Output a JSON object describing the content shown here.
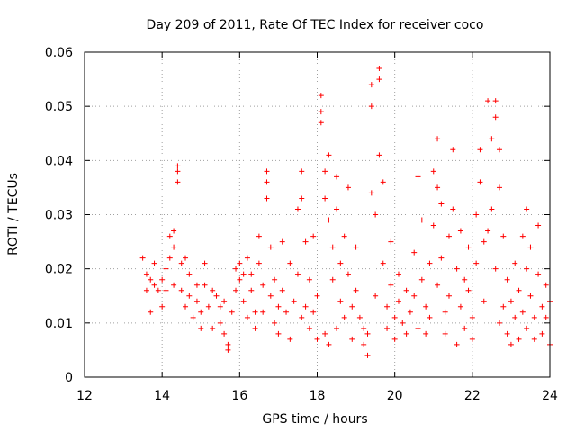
{
  "chart_data": {
    "type": "scatter",
    "title": "Day 209 of 2011, Rate Of TEC Index for receiver coco",
    "xlabel": "GPS time / hours",
    "ylabel": "ROTI / TECUs",
    "xlim": [
      12,
      24
    ],
    "ylim": [
      0,
      0.06
    ],
    "xticks": [
      "12",
      "14",
      "16",
      "18",
      "20",
      "22",
      "24"
    ],
    "yticks": [
      "0",
      "0.01",
      "0.02",
      "0.03",
      "0.04",
      "0.05",
      "0.06"
    ],
    "grid": true,
    "marker": "+",
    "color": "#ff0000",
    "points": [
      [
        13.5,
        0.022
      ],
      [
        13.6,
        0.019
      ],
      [
        13.6,
        0.016
      ],
      [
        13.7,
        0.018
      ],
      [
        13.7,
        0.012
      ],
      [
        13.8,
        0.017
      ],
      [
        13.8,
        0.021
      ],
      [
        13.9,
        0.016
      ],
      [
        14.0,
        0.018
      ],
      [
        14.0,
        0.013
      ],
      [
        14.1,
        0.02
      ],
      [
        14.1,
        0.016
      ],
      [
        14.2,
        0.026
      ],
      [
        14.2,
        0.022
      ],
      [
        14.3,
        0.017
      ],
      [
        14.3,
        0.027
      ],
      [
        14.3,
        0.024
      ],
      [
        14.4,
        0.038
      ],
      [
        14.4,
        0.036
      ],
      [
        14.4,
        0.039
      ],
      [
        14.5,
        0.021
      ],
      [
        14.5,
        0.016
      ],
      [
        14.6,
        0.022
      ],
      [
        14.6,
        0.013
      ],
      [
        14.7,
        0.015
      ],
      [
        14.7,
        0.019
      ],
      [
        14.8,
        0.011
      ],
      [
        14.9,
        0.017
      ],
      [
        14.9,
        0.014
      ],
      [
        15.0,
        0.009
      ],
      [
        15.0,
        0.012
      ],
      [
        15.1,
        0.021
      ],
      [
        15.1,
        0.017
      ],
      [
        15.2,
        0.013
      ],
      [
        15.3,
        0.009
      ],
      [
        15.3,
        0.016
      ],
      [
        15.4,
        0.015
      ],
      [
        15.5,
        0.01
      ],
      [
        15.5,
        0.013
      ],
      [
        15.6,
        0.008
      ],
      [
        15.6,
        0.014
      ],
      [
        15.7,
        0.005
      ],
      [
        15.7,
        0.006
      ],
      [
        15.8,
        0.012
      ],
      [
        15.9,
        0.02
      ],
      [
        15.9,
        0.016
      ],
      [
        16.0,
        0.018
      ],
      [
        16.0,
        0.021
      ],
      [
        16.1,
        0.014
      ],
      [
        16.1,
        0.019
      ],
      [
        16.2,
        0.022
      ],
      [
        16.2,
        0.011
      ],
      [
        16.3,
        0.016
      ],
      [
        16.3,
        0.019
      ],
      [
        16.4,
        0.012
      ],
      [
        16.4,
        0.009
      ],
      [
        16.5,
        0.026
      ],
      [
        16.5,
        0.021
      ],
      [
        16.6,
        0.017
      ],
      [
        16.6,
        0.012
      ],
      [
        16.7,
        0.036
      ],
      [
        16.7,
        0.038
      ],
      [
        16.7,
        0.033
      ],
      [
        16.8,
        0.024
      ],
      [
        16.8,
        0.015
      ],
      [
        16.9,
        0.01
      ],
      [
        16.9,
        0.018
      ],
      [
        17.0,
        0.013
      ],
      [
        17.0,
        0.008
      ],
      [
        17.1,
        0.025
      ],
      [
        17.1,
        0.016
      ],
      [
        17.2,
        0.012
      ],
      [
        17.3,
        0.021
      ],
      [
        17.3,
        0.007
      ],
      [
        17.4,
        0.014
      ],
      [
        17.5,
        0.031
      ],
      [
        17.5,
        0.019
      ],
      [
        17.6,
        0.038
      ],
      [
        17.6,
        0.033
      ],
      [
        17.6,
        0.011
      ],
      [
        17.7,
        0.025
      ],
      [
        17.7,
        0.013
      ],
      [
        17.8,
        0.018
      ],
      [
        17.8,
        0.009
      ],
      [
        17.9,
        0.026
      ],
      [
        17.9,
        0.012
      ],
      [
        18.0,
        0.007
      ],
      [
        18.0,
        0.015
      ],
      [
        18.1,
        0.052
      ],
      [
        18.1,
        0.049
      ],
      [
        18.1,
        0.047
      ],
      [
        18.2,
        0.038
      ],
      [
        18.2,
        0.033
      ],
      [
        18.2,
        0.008
      ],
      [
        18.3,
        0.041
      ],
      [
        18.3,
        0.029
      ],
      [
        18.3,
        0.006
      ],
      [
        18.4,
        0.024
      ],
      [
        18.4,
        0.018
      ],
      [
        18.5,
        0.037
      ],
      [
        18.5,
        0.031
      ],
      [
        18.5,
        0.009
      ],
      [
        18.6,
        0.021
      ],
      [
        18.6,
        0.014
      ],
      [
        18.7,
        0.026
      ],
      [
        18.7,
        0.011
      ],
      [
        18.8,
        0.035
      ],
      [
        18.8,
        0.019
      ],
      [
        18.9,
        0.013
      ],
      [
        18.9,
        0.007
      ],
      [
        19.0,
        0.024
      ],
      [
        19.0,
        0.016
      ],
      [
        19.1,
        0.011
      ],
      [
        19.2,
        0.006
      ],
      [
        19.2,
        0.009
      ],
      [
        19.3,
        0.004
      ],
      [
        19.3,
        0.008
      ],
      [
        19.4,
        0.054
      ],
      [
        19.4,
        0.05
      ],
      [
        19.4,
        0.034
      ],
      [
        19.5,
        0.03
      ],
      [
        19.5,
        0.015
      ],
      [
        19.6,
        0.057
      ],
      [
        19.6,
        0.055
      ],
      [
        19.6,
        0.041
      ],
      [
        19.7,
        0.036
      ],
      [
        19.7,
        0.021
      ],
      [
        19.8,
        0.013
      ],
      [
        19.8,
        0.009
      ],
      [
        19.9,
        0.025
      ],
      [
        19.9,
        0.017
      ],
      [
        20.0,
        0.011
      ],
      [
        20.0,
        0.007
      ],
      [
        20.1,
        0.019
      ],
      [
        20.1,
        0.014
      ],
      [
        20.2,
        0.01
      ],
      [
        20.3,
        0.016
      ],
      [
        20.3,
        0.008
      ],
      [
        20.4,
        0.012
      ],
      [
        20.5,
        0.023
      ],
      [
        20.5,
        0.015
      ],
      [
        20.6,
        0.009
      ],
      [
        20.6,
        0.037
      ],
      [
        20.7,
        0.029
      ],
      [
        20.7,
        0.018
      ],
      [
        20.8,
        0.013
      ],
      [
        20.8,
        0.008
      ],
      [
        20.9,
        0.021
      ],
      [
        20.9,
        0.011
      ],
      [
        21.0,
        0.038
      ],
      [
        21.0,
        0.028
      ],
      [
        21.1,
        0.044
      ],
      [
        21.1,
        0.035
      ],
      [
        21.1,
        0.017
      ],
      [
        21.2,
        0.032
      ],
      [
        21.2,
        0.022
      ],
      [
        21.3,
        0.012
      ],
      [
        21.3,
        0.008
      ],
      [
        21.4,
        0.026
      ],
      [
        21.4,
        0.015
      ],
      [
        21.5,
        0.042
      ],
      [
        21.5,
        0.031
      ],
      [
        21.6,
        0.02
      ],
      [
        21.6,
        0.006
      ],
      [
        21.7,
        0.027
      ],
      [
        21.7,
        0.013
      ],
      [
        21.8,
        0.018
      ],
      [
        21.8,
        0.009
      ],
      [
        21.9,
        0.024
      ],
      [
        21.9,
        0.016
      ],
      [
        22.0,
        0.011
      ],
      [
        22.0,
        0.007
      ],
      [
        22.1,
        0.03
      ],
      [
        22.1,
        0.021
      ],
      [
        22.2,
        0.042
      ],
      [
        22.2,
        0.036
      ],
      [
        22.3,
        0.025
      ],
      [
        22.3,
        0.014
      ],
      [
        22.4,
        0.051
      ],
      [
        22.4,
        0.027
      ],
      [
        22.5,
        0.044
      ],
      [
        22.5,
        0.031
      ],
      [
        22.6,
        0.051
      ],
      [
        22.6,
        0.048
      ],
      [
        22.6,
        0.02
      ],
      [
        22.7,
        0.042
      ],
      [
        22.7,
        0.035
      ],
      [
        22.7,
        0.01
      ],
      [
        22.8,
        0.026
      ],
      [
        22.8,
        0.013
      ],
      [
        22.9,
        0.018
      ],
      [
        22.9,
        0.008
      ],
      [
        23.0,
        0.014
      ],
      [
        23.0,
        0.006
      ],
      [
        23.1,
        0.021
      ],
      [
        23.1,
        0.011
      ],
      [
        23.2,
        0.016
      ],
      [
        23.2,
        0.007
      ],
      [
        23.3,
        0.026
      ],
      [
        23.3,
        0.012
      ],
      [
        23.4,
        0.031
      ],
      [
        23.4,
        0.02
      ],
      [
        23.4,
        0.009
      ],
      [
        23.5,
        0.024
      ],
      [
        23.5,
        0.015
      ],
      [
        23.6,
        0.011
      ],
      [
        23.6,
        0.007
      ],
      [
        23.7,
        0.028
      ],
      [
        23.7,
        0.019
      ],
      [
        23.8,
        0.013
      ],
      [
        23.8,
        0.008
      ],
      [
        23.9,
        0.017
      ],
      [
        23.9,
        0.011
      ],
      [
        24.0,
        0.014
      ],
      [
        24.0,
        0.006
      ]
    ]
  }
}
